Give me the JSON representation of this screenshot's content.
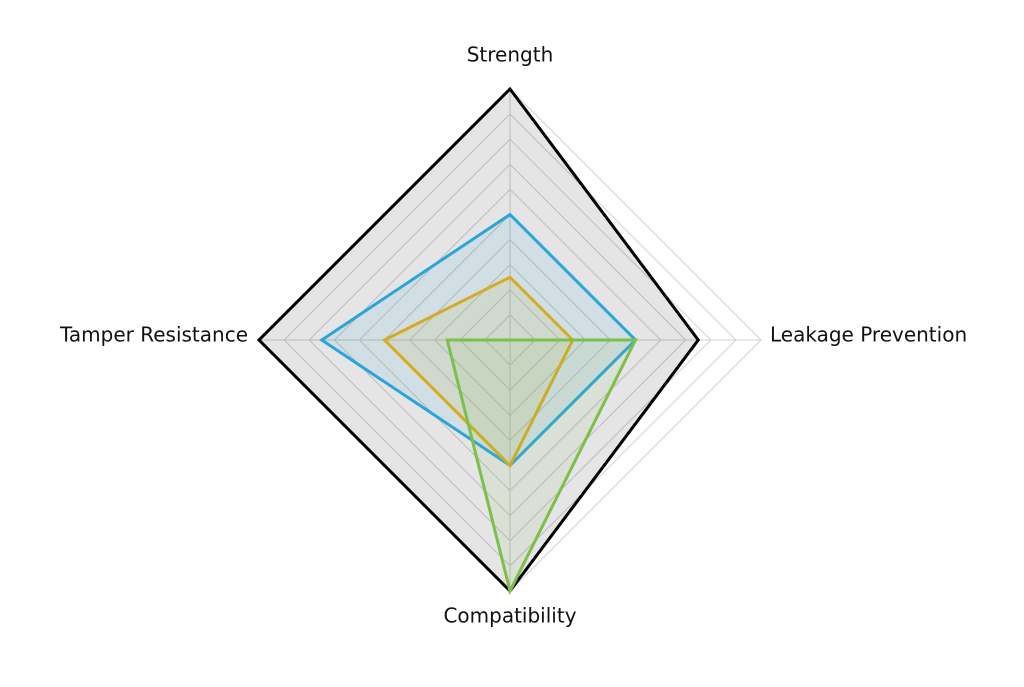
{
  "chart_data": {
    "type": "radar",
    "categories": [
      "Strength",
      "Leakage Prevention",
      "Compatibility",
      "Tamper Resistance"
    ],
    "rlim": [
      0,
      10
    ],
    "rticks": [
      1,
      2,
      3,
      4,
      5,
      6,
      7,
      8,
      9,
      10
    ],
    "grid": true,
    "series": [
      {
        "color": "#000000",
        "values": [
          10,
          7.5,
          10,
          10
        ]
      },
      {
        "color": "#2aa5dc",
        "values": [
          5,
          5,
          5,
          7.5
        ]
      },
      {
        "color": "#d4ac1f",
        "values": [
          2.5,
          2.5,
          5,
          5
        ]
      },
      {
        "color": "#7cbf4a",
        "values": [
          0,
          5,
          10,
          2.5
        ]
      }
    ]
  }
}
